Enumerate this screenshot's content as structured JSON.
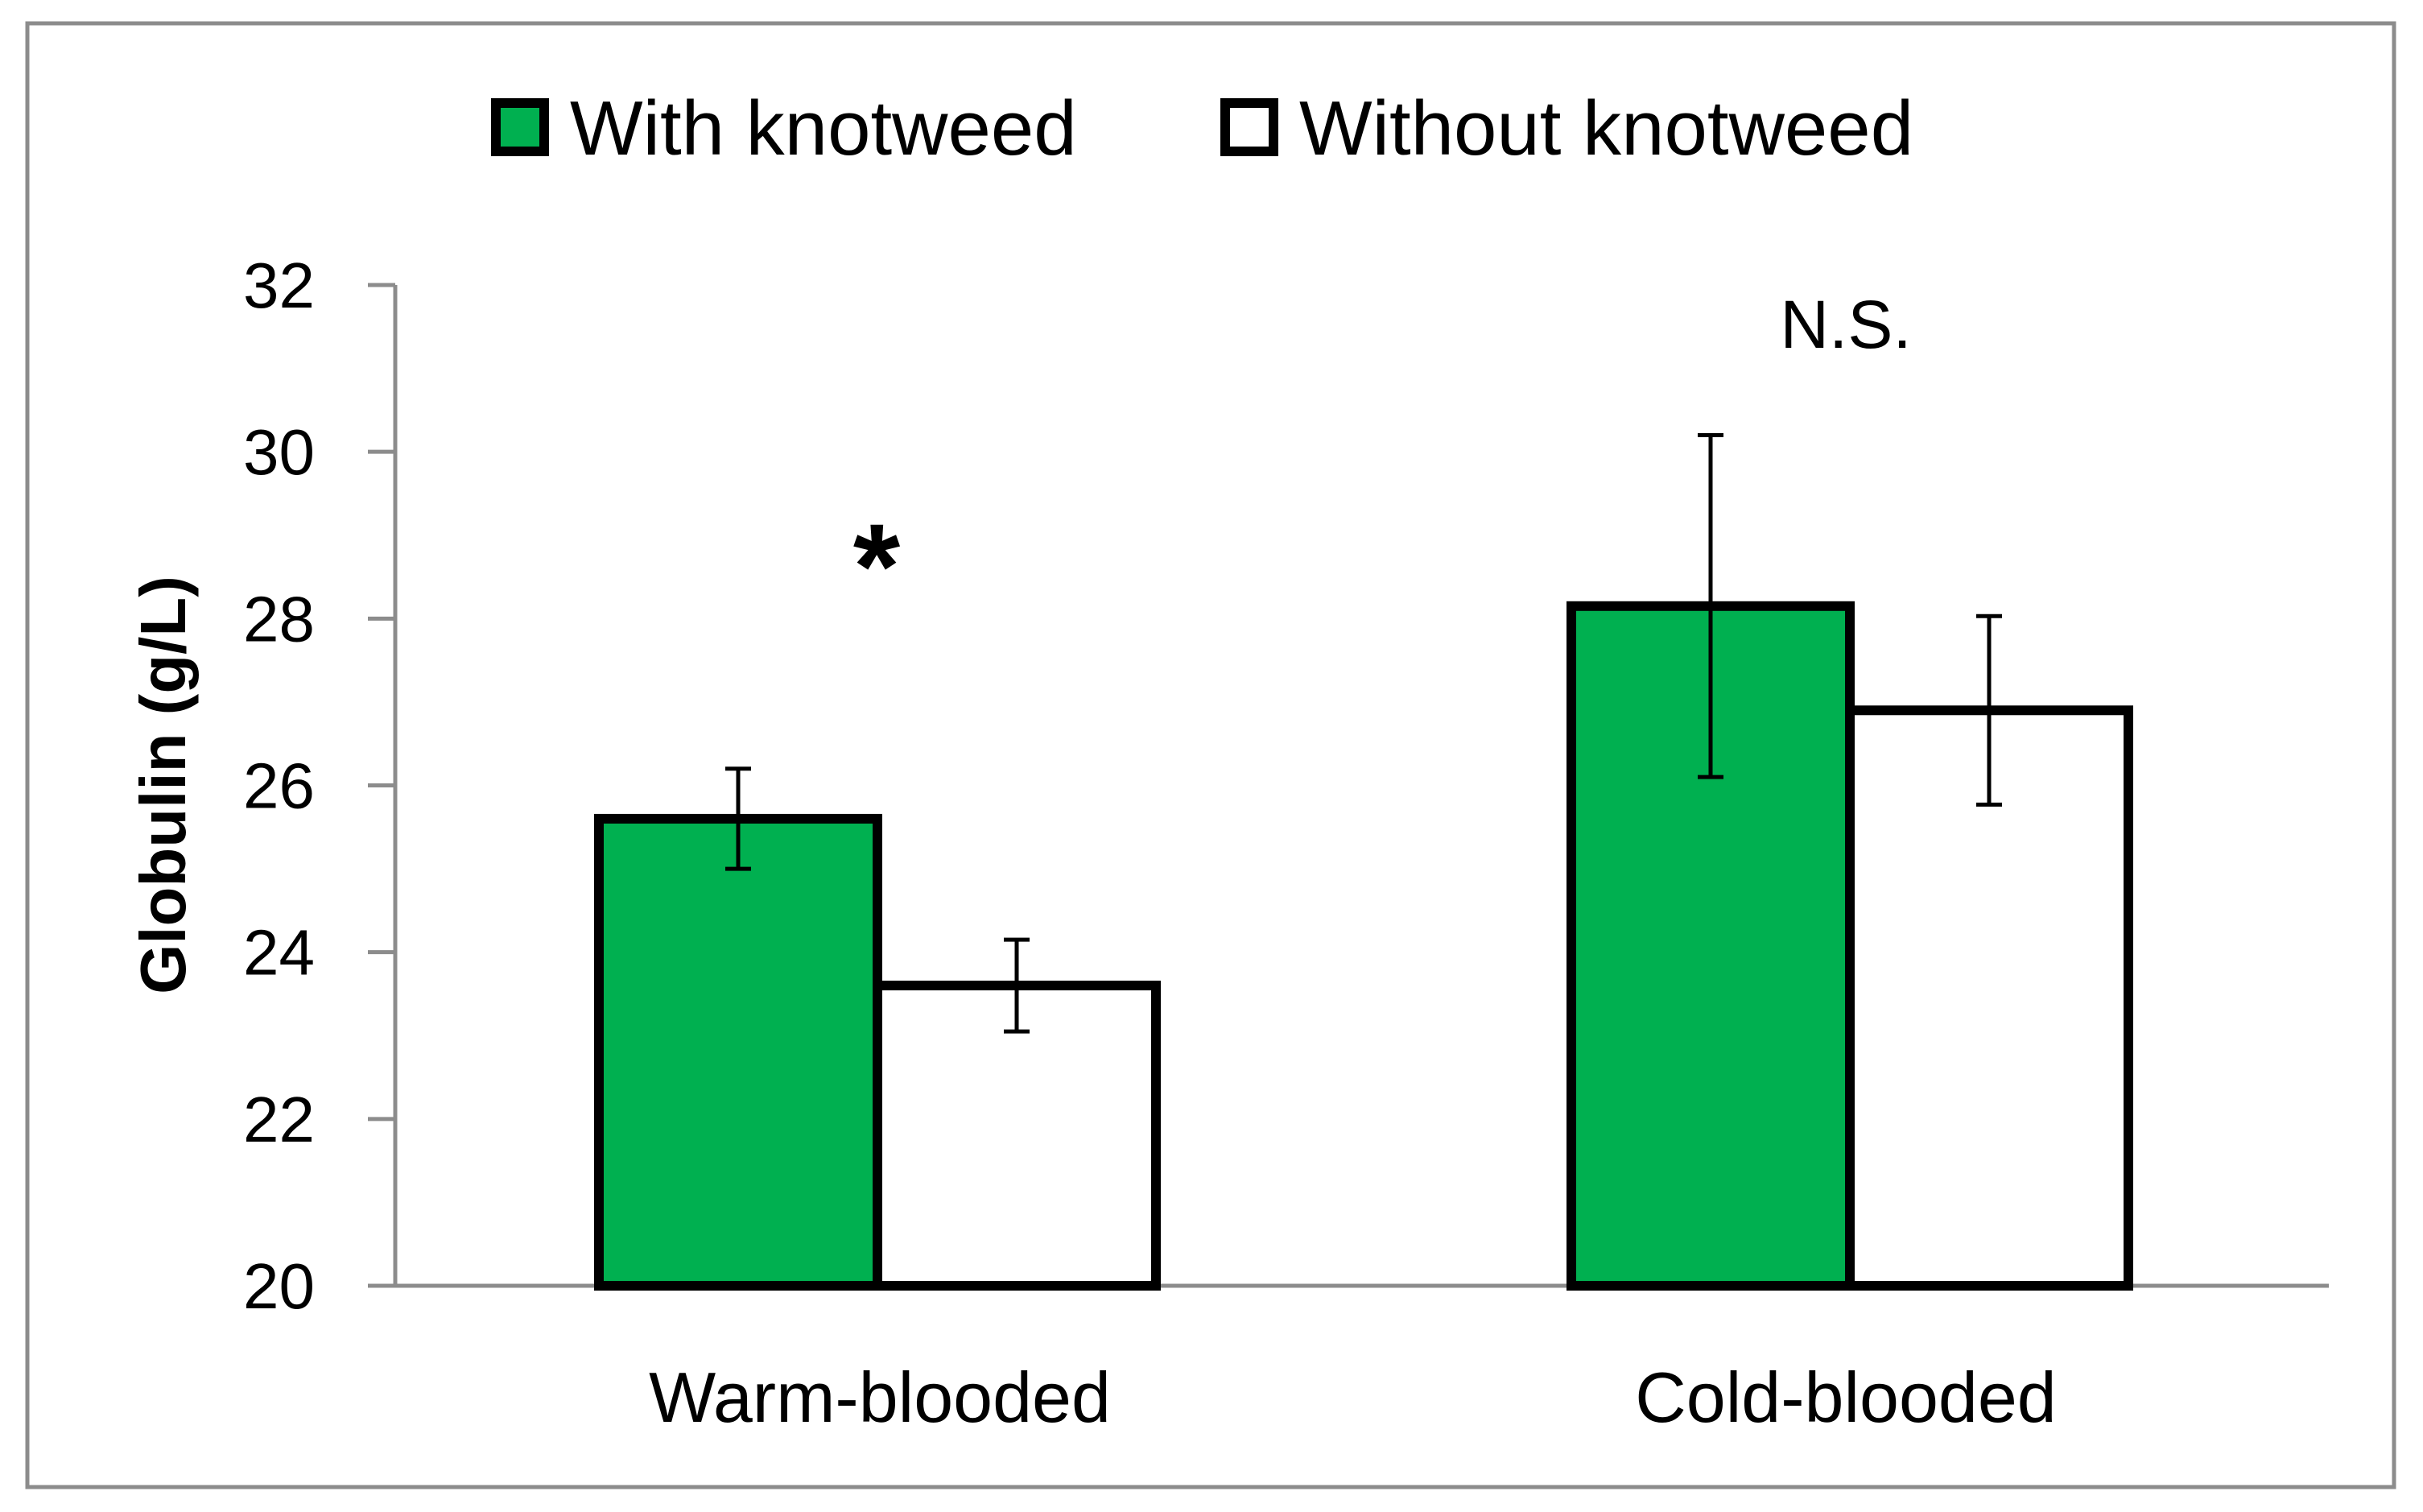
{
  "colors": {
    "frame": "#8c8c8c",
    "axis": "#8c8c8c",
    "with_knotweed": "#00b050",
    "without_knotweed": "#ffffff",
    "bar_stroke": "#000000"
  },
  "chart_data": {
    "type": "bar",
    "title": "",
    "xlabel": "",
    "ylabel": "Globulin (g/L)",
    "ylim": [
      20,
      32
    ],
    "yticks": [
      "20",
      "22",
      "24",
      "26",
      "28",
      "30",
      "32"
    ],
    "grid": false,
    "legend_position": "top-center",
    "categories": [
      "Warm-blooded",
      "Cold-blooded"
    ],
    "series": [
      {
        "name": "With knotweed",
        "color": "#00b050",
        "values": [
          25.6,
          28.15
        ],
        "error": [
          0.6,
          2.05
        ]
      },
      {
        "name": "Without knotweed",
        "color": "#ffffff",
        "values": [
          23.6,
          26.9
        ],
        "error": [
          0.55,
          1.13
        ]
      }
    ],
    "annotations": [
      "*",
      "N.S."
    ]
  }
}
